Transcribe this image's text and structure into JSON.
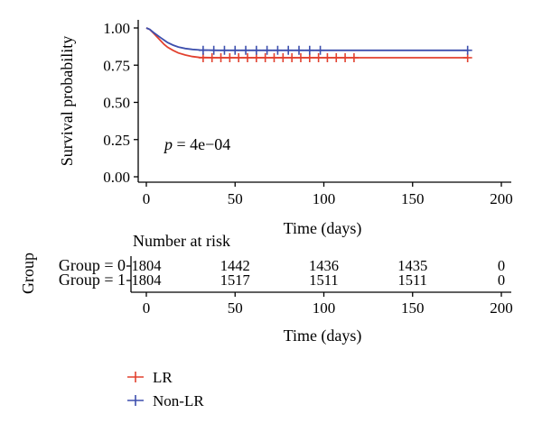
{
  "chart_data": {
    "type": "line",
    "subtype": "kaplan-meier",
    "ylabel": "Survival probability",
    "xlabel": "Time (days)",
    "xlim": [
      0,
      200
    ],
    "ylim": [
      0,
      1
    ],
    "x_ticks": [
      0,
      50,
      100,
      150,
      200
    ],
    "y_ticks": [
      "0.00",
      "0.25",
      "0.50",
      "0.75",
      "1.00"
    ],
    "annotation": {
      "italic": "p",
      "text": " = 4e−04"
    },
    "series": [
      {
        "name": "LR",
        "color": "#e2412f",
        "points": [
          [
            0,
            1.0
          ],
          [
            2,
            0.99
          ],
          [
            4,
            0.965
          ],
          [
            6,
            0.94
          ],
          [
            8,
            0.915
          ],
          [
            10,
            0.89
          ],
          [
            12,
            0.87
          ],
          [
            15,
            0.85
          ],
          [
            18,
            0.832
          ],
          [
            22,
            0.818
          ],
          [
            26,
            0.808
          ],
          [
            30,
            0.802
          ],
          [
            40,
            0.8
          ],
          [
            60,
            0.8
          ],
          [
            100,
            0.8
          ],
          [
            181,
            0.8
          ]
        ],
        "censor_x": [
          32,
          37,
          42,
          47,
          52,
          57,
          62,
          67,
          72,
          77,
          82,
          87,
          92,
          97,
          102,
          107,
          112,
          117,
          181
        ]
      },
      {
        "name": "Non-LR",
        "color": "#3d4fad",
        "points": [
          [
            0,
            1.0
          ],
          [
            2,
            0.99
          ],
          [
            4,
            0.97
          ],
          [
            6,
            0.952
          ],
          [
            8,
            0.935
          ],
          [
            10,
            0.918
          ],
          [
            12,
            0.902
          ],
          [
            15,
            0.885
          ],
          [
            18,
            0.872
          ],
          [
            22,
            0.862
          ],
          [
            26,
            0.856
          ],
          [
            30,
            0.852
          ],
          [
            40,
            0.85
          ],
          [
            100,
            0.85
          ],
          [
            181,
            0.85
          ]
        ],
        "censor_x": [
          32,
          38,
          44,
          50,
          56,
          62,
          68,
          74,
          80,
          86,
          92,
          98,
          181
        ]
      }
    ],
    "risk_table": {
      "title": "Number at risk",
      "ylabel": "Group",
      "xlabel": "Time (days)",
      "times": [
        0,
        50,
        100,
        150,
        200
      ],
      "rows": [
        {
          "label": "Group = 0",
          "color": "#e2412f",
          "counts": [
            "1804",
            "1442",
            "1436",
            "1435",
            "0"
          ]
        },
        {
          "label": "Group = 1",
          "color": "#3d4fad",
          "counts": [
            "1804",
            "1517",
            "1511",
            "1511",
            "0"
          ]
        }
      ]
    },
    "legend": {
      "placement": "bottom-left",
      "entries": [
        {
          "label": "LR",
          "color": "#e2412f"
        },
        {
          "label": "Non-LR",
          "color": "#3d4fad"
        }
      ]
    }
  }
}
